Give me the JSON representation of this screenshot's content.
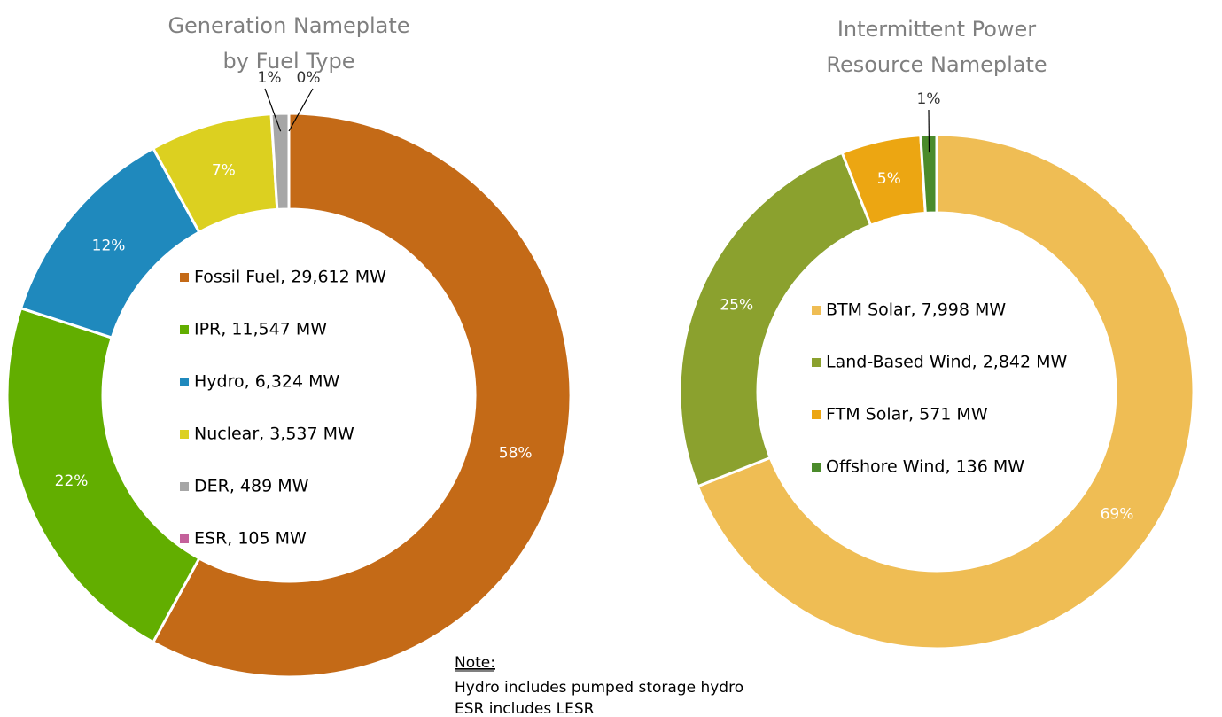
{
  "chart_data": [
    {
      "type": "donut",
      "title": [
        "Generation Nameplate",
        "by Fuel Type"
      ],
      "categories": [
        "Fossil Fuel, 29,612 MW",
        "IPR, 11,547 MW",
        "Hydro, 6,324 MW",
        "Nuclear, 3,537 MW",
        "DER, 489 MW",
        "ESR, 105 MW"
      ],
      "values": [
        58,
        22,
        12,
        7,
        1,
        0
      ],
      "value_labels": [
        "58%",
        "22%",
        "12%",
        "7%",
        "1%",
        "0%"
      ],
      "colors": [
        "#c46a17",
        "#62ae00",
        "#1f89bd",
        "#dcd020",
        "#a6a6a6",
        "#c4619b"
      ]
    },
    {
      "type": "donut",
      "title": [
        "Intermittent Power",
        "Resource Nameplate"
      ],
      "categories": [
        "BTM Solar, 7,998 MW",
        "Land-Based Wind, 2,842 MW",
        "FTM Solar, 571 MW",
        "Offshore Wind, 136 MW"
      ],
      "values": [
        69,
        25,
        5,
        1
      ],
      "value_labels": [
        "69%",
        "25%",
        "5%",
        "1%"
      ],
      "colors": [
        "#efbd54",
        "#8ba12e",
        "#eca612",
        "#4b8b2b"
      ]
    }
  ],
  "note": {
    "title": "Note:",
    "lines": [
      "Hydro includes pumped storage hydro",
      "ESR includes LESR"
    ]
  }
}
